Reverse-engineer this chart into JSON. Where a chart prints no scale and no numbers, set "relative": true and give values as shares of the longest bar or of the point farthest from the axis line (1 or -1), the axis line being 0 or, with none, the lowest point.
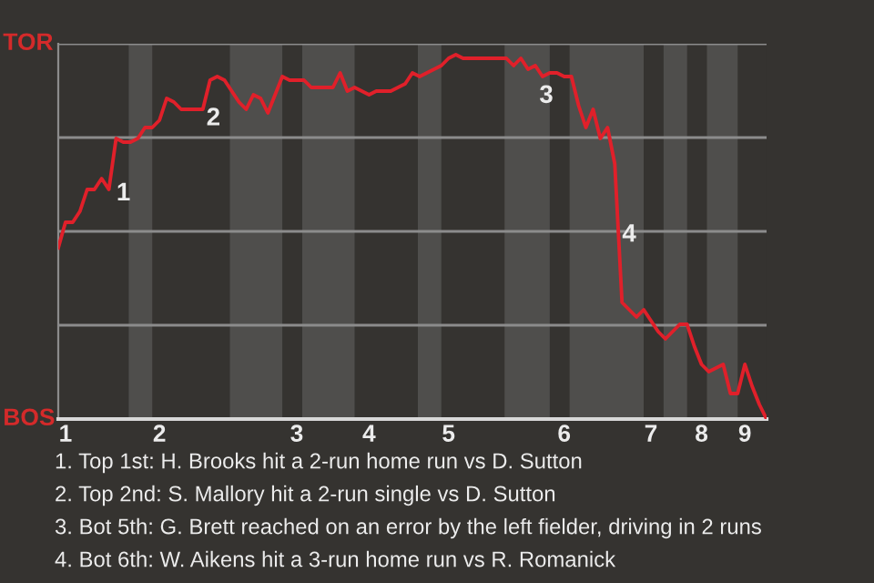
{
  "chart_data": {
    "type": "line",
    "relative": true,
    "categories": [
      null,
      "1",
      null,
      null,
      null,
      null,
      null,
      null,
      null,
      null,
      null,
      null,
      null,
      null,
      "2",
      null,
      null,
      null,
      null,
      null,
      null,
      null,
      null,
      null,
      null,
      null,
      null,
      null,
      null,
      null,
      null,
      null,
      null,
      "3",
      null,
      null,
      null,
      null,
      null,
      null,
      null,
      null,
      null,
      "4",
      null,
      null,
      null,
      null,
      null,
      null,
      null,
      null,
      null,
      null,
      "5",
      null,
      null,
      null,
      null,
      null,
      null,
      null,
      null,
      null,
      null,
      null,
      null,
      null,
      null,
      null,
      "6",
      null,
      null,
      null,
      null,
      null,
      null,
      null,
      null,
      null,
      null,
      null,
      "7",
      null,
      null,
      null,
      null,
      null,
      null,
      "8",
      null,
      null,
      null,
      null,
      null,
      "9",
      null,
      null,
      null
    ],
    "series": [
      {
        "color": "#e0202a",
        "values": [
          0.47,
          0.54,
          0.54,
          0.57,
          0.63,
          0.63,
          0.66,
          0.63,
          0.77,
          0.76,
          0.76,
          0.77,
          0.8,
          0.8,
          0.82,
          0.88,
          0.87,
          0.85,
          0.85,
          0.85,
          0.85,
          0.93,
          0.94,
          0.93,
          0.9,
          0.87,
          0.85,
          0.89,
          0.88,
          0.84,
          0.89,
          0.94,
          0.93,
          0.93,
          0.93,
          0.91,
          0.91,
          0.91,
          0.91,
          0.95,
          0.9,
          0.91,
          0.9,
          0.89,
          0.9,
          0.9,
          0.9,
          0.91,
          0.92,
          0.95,
          0.94,
          0.95,
          0.96,
          0.97,
          0.99,
          1,
          0.99,
          0.99,
          0.99,
          0.99,
          0.99,
          0.99,
          0.99,
          0.97,
          0.99,
          0.96,
          0.97,
          0.94,
          0.95,
          0.95,
          0.94,
          0.94,
          0.86,
          0.8,
          0.85,
          0.77,
          0.8,
          0.7,
          0.32,
          0.3,
          0.28,
          0.3,
          0.27,
          0.24,
          0.22,
          0.24,
          0.26,
          0.26,
          0.2,
          0.15,
          0.13,
          0.14,
          0.15,
          0.07,
          0.07,
          0.15,
          0.09,
          0.04,
          0
        ]
      }
    ],
    "grid": "y",
    "annotations": [
      "TOR",
      "BOS",
      "1",
      "2",
      "3",
      "4",
      "1. Top 1st: H. Brooks hit a 2-run home run vs D. Sutton",
      "2. Top 2nd: S. Mallory hit a 2-run single vs D. Sutton",
      "3. Bot 5th: G. Brett reached on an error by the left fielder, driving in 2 runs",
      "4. Bot 6th: W. Aikens hit a 3-run home run vs R. Romanick"
    ],
    "line_style": "solid",
    "marker": "none"
  }
}
